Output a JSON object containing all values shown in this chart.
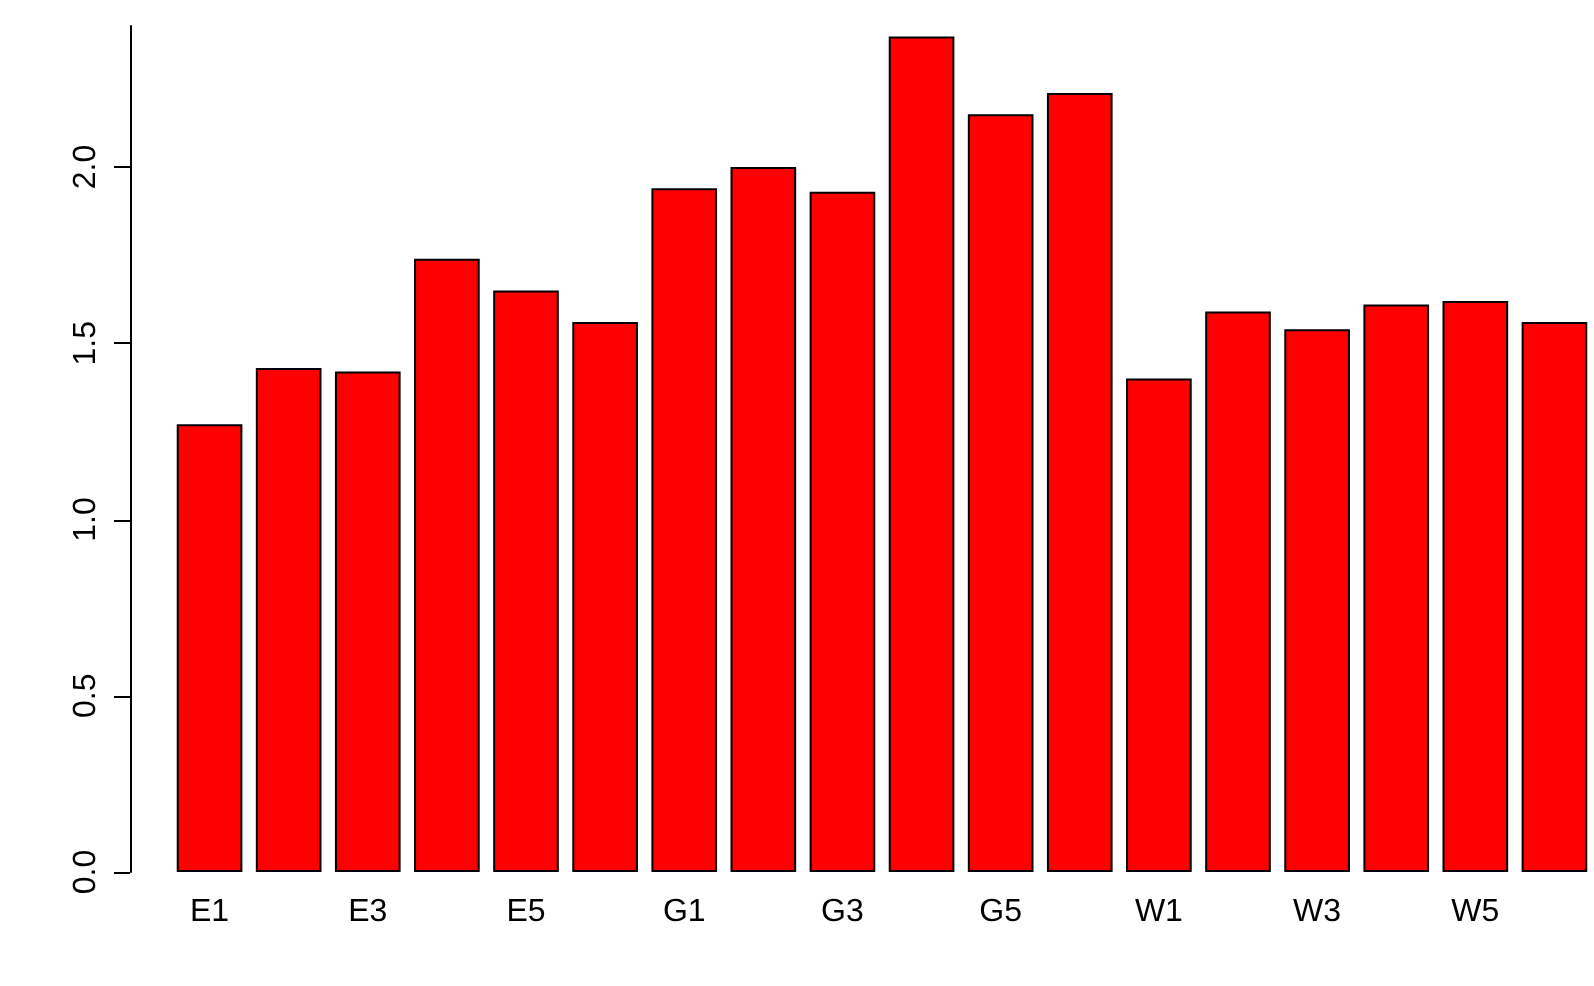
{
  "chart_data": {
    "type": "bar",
    "categories": [
      "E1",
      null,
      "E3",
      null,
      "E5",
      null,
      "G1",
      null,
      "G3",
      null,
      "G5",
      null,
      "W1",
      null,
      "W3",
      null,
      "W5",
      null
    ],
    "values": [
      1.27,
      1.43,
      1.42,
      1.74,
      1.65,
      1.56,
      1.94,
      2.0,
      1.93,
      2.37,
      2.15,
      2.21,
      1.4,
      1.59,
      1.54,
      1.61,
      1.62,
      1.56
    ],
    "color": "#ff0000",
    "ylim": [
      0,
      2.4
    ],
    "yticks": [
      {
        "value": 0,
        "label": "0.0"
      },
      {
        "value": 0.5,
        "label": "0.5"
      },
      {
        "value": 1,
        "label": "1.0"
      },
      {
        "value": 1.5,
        "label": "1.5"
      },
      {
        "value": 2,
        "label": "2.0"
      }
    ],
    "grid": false
  }
}
